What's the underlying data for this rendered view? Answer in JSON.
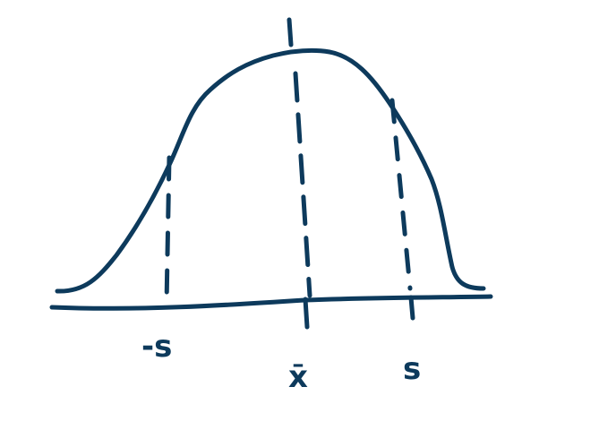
{
  "figure": {
    "ink_color": "#0d3a5c",
    "background_color": "#ffffff",
    "curve_shape": "bell",
    "labels": {
      "left": "-s",
      "center": "x̄",
      "right": "s"
    }
  }
}
